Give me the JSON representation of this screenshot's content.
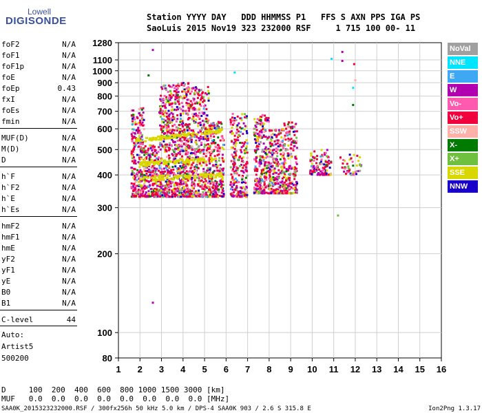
{
  "logo": {
    "line1": "Lowell",
    "line2": "DIGISONDE"
  },
  "header": {
    "line1": "Station YYYY DAY   DDD HHMMSS P1   FFS S AXN PPS IGA PS",
    "line2": "SaoLuis 2015 Nov19 323 232000 RSF     1 715 100 00- 11"
  },
  "params": [
    {
      "k": "foF2",
      "v": "N/A"
    },
    {
      "k": "foF1",
      "v": "N/A"
    },
    {
      "k": "foF1p",
      "v": "N/A"
    },
    {
      "k": "foE",
      "v": "N/A"
    },
    {
      "k": "foEp",
      "v": "0.43"
    },
    {
      "k": "fxI",
      "v": "N/A"
    },
    {
      "k": "foEs",
      "v": "N/A"
    },
    {
      "k": "fmin",
      "v": "N/A"
    },
    {
      "k": "MUF(D)",
      "v": "N/A"
    },
    {
      "k": "M(D)",
      "v": "N/A"
    },
    {
      "k": "D",
      "v": "N/A"
    },
    {
      "k": "h`F",
      "v": "N/A"
    },
    {
      "k": "h`F2",
      "v": "N/A"
    },
    {
      "k": "h`E",
      "v": "N/A"
    },
    {
      "k": "h`Es",
      "v": "N/A"
    },
    {
      "k": "hmF2",
      "v": "N/A"
    },
    {
      "k": "hmF1",
      "v": "N/A"
    },
    {
      "k": "hmE",
      "v": "N/A"
    },
    {
      "k": "yF2",
      "v": "N/A"
    },
    {
      "k": "yF1",
      "v": "N/A"
    },
    {
      "k": "yE",
      "v": "N/A"
    },
    {
      "k": "B0",
      "v": "N/A"
    },
    {
      "k": "B1",
      "v": "N/A"
    },
    {
      "k": "C-level",
      "v": "44"
    }
  ],
  "auto": {
    "l1": "Auto:",
    "l2": "Artist5",
    "l3": "500200"
  },
  "footer": {
    "d_line": "D     100  200  400  600  800 1000 1500 3000 [km]",
    "muf_line": "MUF   0.0  0.0  0.0  0.0  0.0  0.0  0.0  0.0 [MHz]",
    "file_line": "SAA0K_2015323232000.RSF / 300fx256h 50 kHz 5.0 km / DPS-4 SAA0K 903 / 2.6 S 315.8 E",
    "version": "Ion2Png 1.3.17"
  },
  "legend": [
    {
      "label": "NoVal",
      "color": "#a0a0a0"
    },
    {
      "label": "NNE",
      "color": "#00e5ff"
    },
    {
      "label": "E",
      "color": "#3fa8f5"
    },
    {
      "label": "W",
      "color": "#b000b0"
    },
    {
      "label": "Vo-",
      "color": "#ff5ab0"
    },
    {
      "label": "Vo+",
      "color": "#f0003c"
    },
    {
      "label": "SSW",
      "color": "#ffb0a8"
    },
    {
      "label": "X-",
      "color": "#007a00"
    },
    {
      "label": "X+",
      "color": "#70c040"
    },
    {
      "label": "SSE",
      "color": "#d8d800"
    },
    {
      "label": "NNW",
      "color": "#1800c8"
    }
  ],
  "chart_data": {
    "type": "scatter",
    "xlabel": "",
    "ylabel": "",
    "xlim": [
      1,
      16
    ],
    "ylim": [
      80,
      1280
    ],
    "y_scale": "log",
    "x_ticks": [
      "1",
      "2",
      "3",
      "4",
      "5",
      "6",
      "7",
      "8",
      "9",
      "10",
      "11",
      "12",
      "13",
      "14",
      "15",
      "16"
    ],
    "y_ticks": [
      {
        "v": 80,
        "t": "80"
      },
      {
        "v": 100,
        "t": "100"
      },
      {
        "v": 200,
        "t": "200"
      },
      {
        "v": 300,
        "t": "300"
      },
      {
        "v": 400,
        "t": "400"
      },
      {
        "v": 500,
        "t": "500"
      },
      {
        "v": 600,
        "t": "600"
      },
      {
        "v": 700,
        "t": "700"
      },
      {
        "v": 800,
        "t": "800"
      },
      {
        "v": 900,
        "t": "900"
      },
      {
        "v": 1000,
        "t": "1000"
      },
      {
        "v": 1100,
        "t": "1100"
      },
      {
        "v": 1280,
        "t": "1280"
      }
    ],
    "grid": true,
    "echo_clusters": [
      {
        "x": [
          1.6,
          2.2
        ],
        "y": [
          330,
          720
        ],
        "n": 260
      },
      {
        "x": [
          2.2,
          2.9
        ],
        "y": [
          330,
          520
        ],
        "n": 220
      },
      {
        "x": [
          2.9,
          3.6
        ],
        "y": [
          330,
          880
        ],
        "n": 380
      },
      {
        "x": [
          3.6,
          4.4
        ],
        "y": [
          330,
          900
        ],
        "n": 420
      },
      {
        "x": [
          4.4,
          5.2
        ],
        "y": [
          330,
          880
        ],
        "n": 360
      },
      {
        "x": [
          5.2,
          5.9
        ],
        "y": [
          330,
          640
        ],
        "n": 260
      },
      {
        "x": [
          6.2,
          7.0
        ],
        "y": [
          330,
          690
        ],
        "n": 260
      },
      {
        "x": [
          7.3,
          8.0
        ],
        "y": [
          340,
          680
        ],
        "n": 260
      },
      {
        "x": [
          8.0,
          8.7
        ],
        "y": [
          340,
          600
        ],
        "n": 240
      },
      {
        "x": [
          8.7,
          9.3
        ],
        "y": [
          340,
          640
        ],
        "n": 200
      },
      {
        "x": [
          9.9,
          10.9
        ],
        "y": [
          400,
          500
        ],
        "n": 110
      },
      {
        "x": [
          11.3,
          12.3
        ],
        "y": [
          400,
          480
        ],
        "n": 50
      }
    ],
    "sse_traces": [
      {
        "x": [
          1.8,
          5.8
        ],
        "y": [
          540,
          590
        ],
        "n": 90
      },
      {
        "x": [
          2.0,
          5.6
        ],
        "y": [
          440,
          460
        ],
        "n": 80
      },
      {
        "x": [
          2.0,
          5.8
        ],
        "y": [
          385,
          400
        ],
        "n": 70
      }
    ],
    "isolated_points": [
      {
        "x": 2.6,
        "y": 1200,
        "c": "W"
      },
      {
        "x": 2.6,
        "y": 130,
        "c": "W"
      },
      {
        "x": 11.4,
        "y": 1180,
        "c": "W"
      },
      {
        "x": 11.4,
        "y": 1090,
        "c": "W"
      },
      {
        "x": 11.95,
        "y": 1060,
        "c": "Vo+"
      },
      {
        "x": 10.9,
        "y": 1110,
        "c": "NNE"
      },
      {
        "x": 6.4,
        "y": 985,
        "c": "NNE"
      },
      {
        "x": 11.9,
        "y": 860,
        "c": "NNE"
      },
      {
        "x": 11.2,
        "y": 280,
        "c": "X+"
      },
      {
        "x": 11.9,
        "y": 740,
        "c": "X-"
      },
      {
        "x": 12.0,
        "y": 920,
        "c": "SSW"
      },
      {
        "x": 2.4,
        "y": 960,
        "c": "X-"
      }
    ]
  }
}
